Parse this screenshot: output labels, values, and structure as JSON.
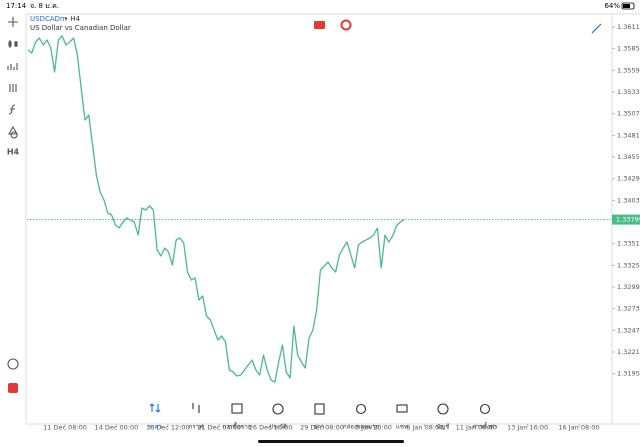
{
  "status_bar": {
    "time": "17:14",
    "date": "จ. 8 ม.ค.",
    "battery": "64%"
  },
  "header": {
    "symbol": "USDCADm",
    "timeframe": "• H4",
    "description": "US Dollar vs Canadian Dollar"
  },
  "toolbar": {
    "timeframe": "H4"
  },
  "chart": {
    "type": "line",
    "color": "#4cbb8a",
    "values": [
      1.35834,
      1.35798,
      1.3593,
      1.35978,
      1.35894,
      1.35954,
      1.35858,
      1.3557,
      1.35954,
      1.36002,
      1.35894,
      1.3593,
      1.35978,
      1.35774,
      1.35378,
      1.34994,
      1.35054,
      1.34694,
      1.34334,
      1.3413,
      1.34034,
      1.33878,
      1.33854,
      1.33734,
      1.33698,
      1.3377,
      1.33818,
      1.33794,
      1.3377,
      1.33614,
      1.33938,
      1.33914,
      1.33962,
      1.33914,
      1.33434,
      1.33362,
      1.33458,
      1.3341,
      1.33254,
      1.33554,
      1.33578,
      1.33518,
      1.3317,
      1.33074,
      1.33098,
      1.32834,
      1.32882,
      1.32642,
      1.32594,
      1.32474,
      1.32354,
      1.32402,
      1.3233,
      1.31994,
      1.3197,
      1.31922,
      1.31934,
      1.31994,
      1.32054,
      1.32114,
      1.31994,
      1.31934,
      1.32174,
      1.31994,
      1.31874,
      1.3185,
      1.3209,
      1.32294,
      1.3197,
      1.31898,
      1.32522,
      1.32174,
      1.3209,
      1.32018,
      1.32378,
      1.32474,
      1.32714,
      1.33194,
      1.33242,
      1.3329,
      1.33218,
      1.3317,
      1.33374,
      1.33458,
      1.3353,
      1.33374,
      1.33218,
      1.33494,
      1.3353,
      1.33554,
      1.33578,
      1.33614,
      1.33698,
      1.33218,
      1.33614,
      1.3353,
      1.33602,
      1.33722,
      1.3377,
      1.33799
    ],
    "ylim": [
      1.31346,
      1.36266
    ],
    "yticks": [
      {
        "value": 1.3611,
        "label": "1.36110"
      },
      {
        "value": 1.3585,
        "label": "1.35850"
      },
      {
        "value": 1.3559,
        "label": "1.35590"
      },
      {
        "value": 1.3533,
        "label": "1.35330"
      },
      {
        "value": 1.3507,
        "label": "1.35070"
      },
      {
        "value": 1.3481,
        "label": "1.34810"
      },
      {
        "value": 1.3455,
        "label": "1.34550"
      },
      {
        "value": 1.3429,
        "label": "1.34290"
      },
      {
        "value": 1.3403,
        "label": "1.34030"
      },
      {
        "value": 1.3351,
        "label": "1.33510"
      },
      {
        "value": 1.3325,
        "label": "1.33250"
      },
      {
        "value": 1.3299,
        "label": "1.32990"
      },
      {
        "value": 1.3273,
        "label": "1.32730"
      },
      {
        "value": 1.3247,
        "label": "1.32470"
      },
      {
        "value": 1.3221,
        "label": "1.32210"
      },
      {
        "value": 1.3195,
        "label": "1.31950"
      }
    ],
    "current_price": {
      "value": 1.33799,
      "label": "1.33799"
    },
    "xticks": [
      "11 Dec 08:00",
      "14 Dec 00:00",
      "16 Dec 12:00",
      "21 Dec 04:00",
      "26 Dec 16:00",
      "29 Dec 08:00",
      "3 Jan 20:00",
      "8 Jan 08:00",
      "11 Jan 00:00",
      "13 Jan 16:00",
      "16 Jan 08:00"
    ]
  },
  "tabs": [
    "ราคา",
    "กราฟ",
    "การซื้อขาย",
    "ประวัติ",
    "ข่าว",
    "กล่องจดหมาย",
    "แชท",
    "บัญชี",
    "การตั้งค่า"
  ]
}
